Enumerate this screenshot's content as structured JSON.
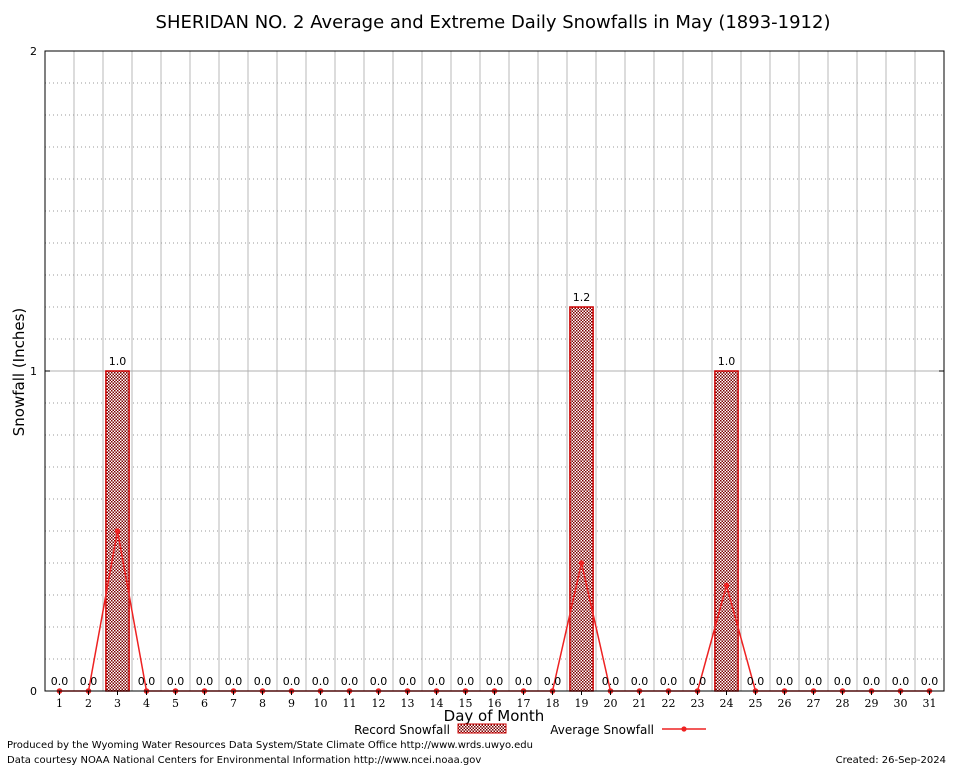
{
  "chart_data": {
    "type": "bar",
    "title": "SHERIDAN NO. 2 Average and Extreme Daily Snowfalls in May (1893-1912)",
    "xlabel": "Day of Month",
    "ylabel": "Snowfall (Inches)",
    "ylim": [
      0,
      2
    ],
    "y_ticks": [
      "0",
      "1",
      "2"
    ],
    "grid": true,
    "categories": [
      "1",
      "2",
      "3",
      "4",
      "5",
      "6",
      "7",
      "8",
      "9",
      "10",
      "11",
      "12",
      "13",
      "14",
      "15",
      "16",
      "17",
      "18",
      "19",
      "20",
      "21",
      "22",
      "23",
      "24",
      "25",
      "26",
      "27",
      "28",
      "29",
      "30",
      "31"
    ],
    "series": [
      {
        "name": "Record Snowfall",
        "kind": "bar",
        "color": "#cc0000",
        "values": [
          0,
          0,
          1.0,
          0,
          0,
          0,
          0,
          0,
          0,
          0,
          0,
          0,
          0,
          0,
          0,
          0,
          0,
          0,
          1.2,
          0,
          0,
          0,
          0,
          1.0,
          0,
          0,
          0,
          0,
          0,
          0,
          0
        ],
        "labels": [
          "0.0",
          "0.0",
          "1.0",
          "0.0",
          "0.0",
          "0.0",
          "0.0",
          "0.0",
          "0.0",
          "0.0",
          "0.0",
          "0.0",
          "0.0",
          "0.0",
          "0.0",
          "0.0",
          "0.0",
          "0.0",
          "1.2",
          "0.0",
          "0.0",
          "0.0",
          "0.0",
          "1.0",
          "0.0",
          "0.0",
          "0.0",
          "0.0",
          "0.0",
          "0.0",
          "0.0"
        ]
      },
      {
        "name": "Average Snowfall",
        "kind": "line",
        "color": "#ee2222",
        "values": [
          0,
          0,
          0.5,
          0,
          0,
          0,
          0,
          0,
          0,
          0,
          0,
          0,
          0,
          0,
          0,
          0,
          0,
          0,
          0.4,
          0,
          0,
          0,
          0,
          0.33,
          0,
          0,
          0,
          0,
          0,
          0,
          0
        ]
      }
    ],
    "legend_placement": "bottom-center"
  },
  "footer": {
    "left_line1": "Produced by the Wyoming Water Resources Data System/State Climate Office http://www.wrds.uwyo.edu",
    "left_line2": "Data courtesy NOAA National Centers for Environmental Information http://www.ncei.noaa.gov",
    "created": "Created:  26-Sep-2024"
  }
}
